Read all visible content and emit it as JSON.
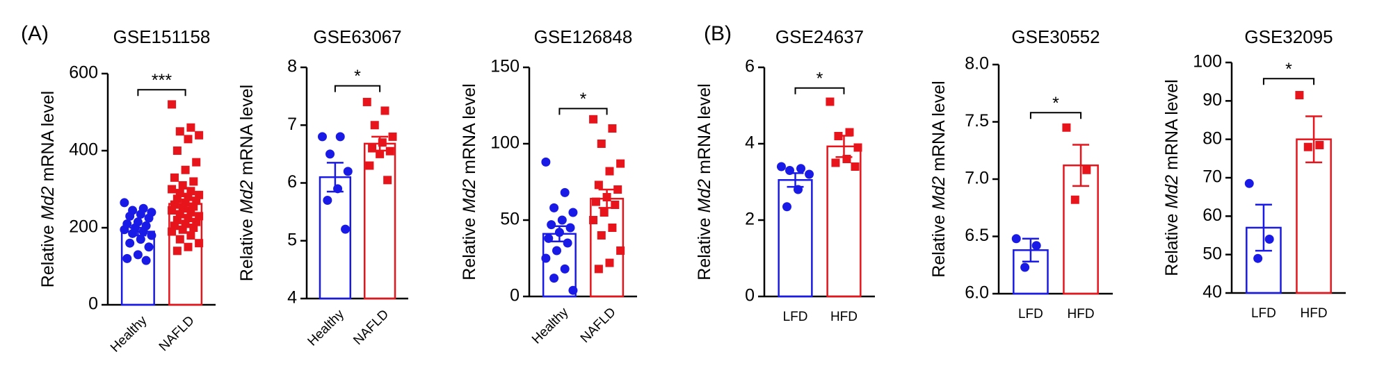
{
  "panels": [
    "(A)",
    "(B)"
  ],
  "chart_data": [
    {
      "type": "bar",
      "title": "GSE151158",
      "ylabel_prefix": "Relative",
      "ylabel_gene": "Md2",
      "ylabel_suffix": "mRNA level",
      "categories": [
        "Healthy",
        "NAFLD"
      ],
      "values": [
        190,
        262
      ],
      "errors": [
        10,
        10
      ],
      "points": [
        [
          265,
          250,
          245,
          240,
          235,
          230,
          225,
          215,
          210,
          205,
          200,
          195,
          190,
          185,
          180,
          170,
          160,
          150,
          130,
          120,
          115
        ],
        [
          520,
          460,
          450,
          440,
          430,
          400,
          370,
          350,
          330,
          320,
          310,
          300,
          295,
          290,
          285,
          280,
          275,
          270,
          265,
          260,
          255,
          250,
          245,
          240,
          235,
          230,
          225,
          220,
          215,
          210,
          205,
          200,
          195,
          190,
          180,
          170,
          160,
          150,
          140
        ]
      ],
      "colors": [
        "#1a1ae6",
        "#e8141c"
      ],
      "markers": [
        "circle",
        "square"
      ],
      "significance": "***",
      "ylim": [
        0,
        600
      ],
      "yticks": [
        0,
        200,
        400,
        600
      ]
    },
    {
      "type": "bar",
      "title": "GSE63067",
      "ylabel_prefix": "Relative",
      "ylabel_gene": "Md2",
      "ylabel_suffix": "mRNA level",
      "categories": [
        "Healthy",
        "NAFLD"
      ],
      "values": [
        6.1,
        6.68
      ],
      "errors": [
        0.25,
        0.12
      ],
      "points": [
        [
          6.8,
          6.8,
          6.5,
          6.2,
          5.9,
          5.7,
          5.2
        ],
        [
          7.4,
          7.25,
          7.0,
          6.8,
          6.7,
          6.6,
          6.55,
          6.5,
          6.3,
          6.05
        ]
      ],
      "colors": [
        "#1a1ae6",
        "#e8141c"
      ],
      "markers": [
        "circle",
        "square"
      ],
      "significance": "*",
      "ylim": [
        4,
        8
      ],
      "yticks": [
        4,
        5,
        6,
        7,
        8
      ]
    },
    {
      "type": "bar",
      "title": "GSE126848",
      "ylabel_prefix": "Relative",
      "ylabel_gene": "Md2",
      "ylabel_suffix": "mRNA level",
      "categories": [
        "Healthy",
        "NAFLD"
      ],
      "values": [
        41,
        64
      ],
      "errors": [
        5,
        6
      ],
      "points": [
        [
          88,
          68,
          58,
          55,
          50,
          47,
          45,
          42,
          38,
          35,
          30,
          25,
          18,
          12,
          4
        ],
        [
          116,
          110,
          100,
          87,
          82,
          73,
          70,
          65,
          62,
          60,
          55,
          50,
          45,
          40,
          30,
          22,
          18
        ]
      ],
      "colors": [
        "#1a1ae6",
        "#e8141c"
      ],
      "markers": [
        "circle",
        "square"
      ],
      "significance": "*",
      "ylim": [
        0,
        150
      ],
      "yticks": [
        0,
        50,
        100,
        150
      ]
    },
    {
      "type": "bar",
      "title": "GSE24637",
      "ylabel_prefix": "Relative",
      "ylabel_gene": "Md2",
      "ylabel_suffix": "mRNA level",
      "categories": [
        "LFD",
        "HFD"
      ],
      "values": [
        3.05,
        3.93
      ],
      "errors": [
        0.18,
        0.28
      ],
      "points": [
        [
          3.4,
          3.35,
          3.3,
          3.2,
          2.8,
          2.35
        ],
        [
          5.1,
          4.3,
          4.2,
          3.9,
          3.6,
          3.5,
          3.4
        ]
      ],
      "colors": [
        "#1a1ae6",
        "#e8141c"
      ],
      "markers": [
        "circle",
        "square"
      ],
      "significance": "*",
      "ylim": [
        0,
        6
      ],
      "yticks": [
        0,
        2,
        4,
        6
      ]
    },
    {
      "type": "bar",
      "title": "GSE30552",
      "ylabel_prefix": "Relative",
      "ylabel_gene": "Md2",
      "ylabel_suffix": "mRNA level",
      "categories": [
        "LFD",
        "HFD"
      ],
      "values": [
        6.38,
        7.12
      ],
      "errors": [
        0.1,
        0.18
      ],
      "points": [
        [
          6.48,
          6.42,
          6.23
        ],
        [
          7.45,
          7.08,
          6.82
        ]
      ],
      "colors": [
        "#1a1ae6",
        "#e8141c"
      ],
      "markers": [
        "circle",
        "square"
      ],
      "significance": "*",
      "ylim": [
        6.0,
        8.0
      ],
      "yticks": [
        {
          "value": 6,
          "label": "6.0"
        },
        6.5,
        {
          "value": 7,
          "label": "7.0"
        },
        7.5,
        {
          "value": 8,
          "label": "8.0"
        }
      ]
    },
    {
      "type": "bar",
      "title": "GSE32095",
      "ylabel_prefix": "Relative",
      "ylabel_gene": "Md2",
      "ylabel_suffix": "mRNA level",
      "categories": [
        "LFD",
        "HFD"
      ],
      "values": [
        57,
        80
      ],
      "errors": [
        6,
        6
      ],
      "points": [
        [
          68.5,
          54,
          49
        ],
        [
          91.5,
          78.5,
          78
        ]
      ],
      "colors": [
        "#1a1ae6",
        "#e8141c"
      ],
      "markers": [
        "circle",
        "square"
      ],
      "significance": "*",
      "ylim": [
        40,
        100
      ],
      "yticks": [
        40,
        50,
        60,
        70,
        80,
        90,
        100
      ]
    }
  ]
}
